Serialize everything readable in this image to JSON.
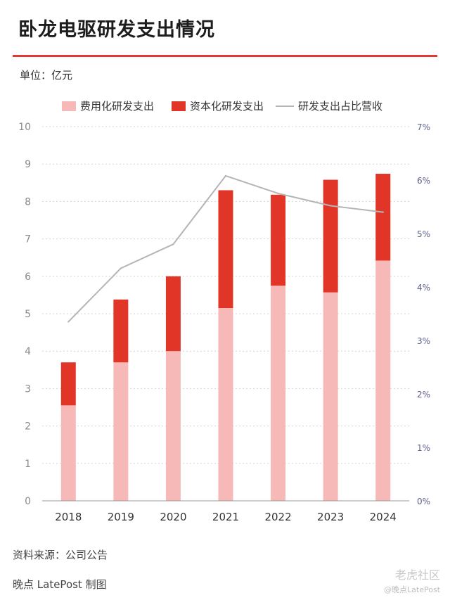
{
  "title": "卧龙电驱研发支出情况",
  "unit_label": "单位：亿元",
  "source": "资料来源：公司公告",
  "credit": "晚点 LatePost 制图",
  "watermark": {
    "main": "老虎社区",
    "sub": "@晚点LatePost"
  },
  "colors": {
    "accent_rule": "#e23a2f",
    "expensed": "#f7b9b7",
    "capitalized": "#e13528",
    "ratio_line": "#b5b5b5",
    "right_axis_text": "#5c5f8a"
  },
  "chart_data": {
    "type": "bar",
    "stacked": true,
    "categories": [
      "2018",
      "2019",
      "2020",
      "2021",
      "2022",
      "2023",
      "2024"
    ],
    "series": [
      {
        "name": "费用化研发支出",
        "type": "bar",
        "axis": "left",
        "values": [
          2.55,
          3.7,
          4.0,
          5.15,
          5.75,
          5.57,
          6.42
        ]
      },
      {
        "name": "资本化研发支出",
        "type": "bar",
        "axis": "left",
        "values": [
          1.15,
          1.68,
          2.0,
          3.15,
          2.43,
          3.01,
          2.32
        ]
      },
      {
        "name": "研发支出占比营收",
        "type": "line",
        "axis": "right",
        "values": [
          3.35,
          4.35,
          4.8,
          6.08,
          5.75,
          5.52,
          5.4
        ]
      }
    ],
    "ylim_left": [
      0,
      10
    ],
    "yticks_left": [
      "0",
      "1",
      "2",
      "3",
      "4",
      "5",
      "6",
      "7",
      "8",
      "9",
      "10"
    ],
    "ylim_right": [
      0,
      7
    ],
    "yticks_right": [
      "0%",
      "1%",
      "2%",
      "3%",
      "4%",
      "5%",
      "6%",
      "7%"
    ],
    "grid": "horizontal-dotted",
    "legend": "top-center"
  }
}
